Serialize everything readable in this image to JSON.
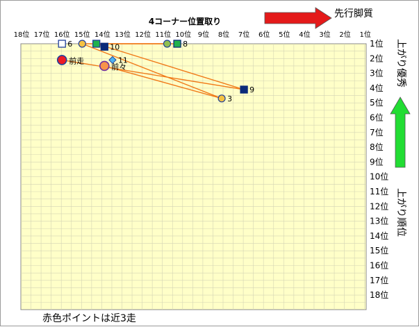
{
  "chart_data": {
    "type": "scatter",
    "title": "4コーナー位置取り",
    "x_axis_label": "先行脚質",
    "y_axis_label_top": "上がり優秀",
    "y_axis_label_bottom": "上がり順位",
    "footnote": "赤色ポイントは近3走",
    "xlim": [
      18,
      1
    ],
    "ylim": [
      1,
      18
    ],
    "x_ticks": [
      "18位",
      "17位",
      "16位",
      "15位",
      "14位",
      "13位",
      "12位",
      "11位",
      "10位",
      "9位",
      "8位",
      "7位",
      "6位",
      "5位",
      "4位",
      "3位",
      "2位",
      "1位"
    ],
    "y_ticks": [
      "1位",
      "2位",
      "3位",
      "4位",
      "5位",
      "6位",
      "7位",
      "8位",
      "9位",
      "10位",
      "11位",
      "12位",
      "13位",
      "14位",
      "15位",
      "16位",
      "17位",
      "18位"
    ],
    "grid": true,
    "points": [
      {
        "label": "6",
        "x": 16.0,
        "y": 1.0,
        "shape": "square",
        "fill": "#ffffff",
        "stroke": "#1f3f9a"
      },
      {
        "label": "",
        "x": 15.0,
        "y": 1.0,
        "shape": "circle",
        "fill": "#f5c242",
        "stroke": "#1f3f9a"
      },
      {
        "label": "",
        "x": 14.3,
        "y": 1.0,
        "shape": "square",
        "fill": "#22b14c",
        "stroke": "#1f3f9a"
      },
      {
        "label": "10",
        "x": 13.9,
        "y": 1.2,
        "shape": "square",
        "fill": "#0a2a7a",
        "stroke": "#0a2a7a"
      },
      {
        "label": "",
        "x": 10.8,
        "y": 1.0,
        "shape": "circle",
        "fill": "#92c050",
        "stroke": "#1f3f9a"
      },
      {
        "label": "8",
        "x": 10.3,
        "y": 1.0,
        "shape": "square",
        "fill": "#22b14c",
        "stroke": "#0a2a7a"
      },
      {
        "label": "11",
        "x": 13.5,
        "y": 2.1,
        "shape": "diamond",
        "fill": "#4db3f0",
        "stroke": "#1f3f9a"
      },
      {
        "label": "9",
        "x": 7.0,
        "y": 4.1,
        "shape": "square",
        "fill": "#0a2a7a",
        "stroke": "#0a2a7a"
      },
      {
        "label": "3",
        "x": 8.1,
        "y": 4.7,
        "shape": "circle",
        "fill": "#f5c242",
        "stroke": "#1f3f9a"
      },
      {
        "label": "前走",
        "x": 16.0,
        "y": 2.1,
        "shape": "circle-large",
        "fill": "#ee1c25",
        "stroke": "#1f3f9a"
      },
      {
        "label": "前々",
        "x": 13.9,
        "y": 2.5,
        "shape": "circle-large",
        "fill": "#f7944a",
        "stroke": "#7030a0"
      }
    ],
    "lines": [
      {
        "from": [
          16.0,
          2.1
        ],
        "to": [
          7.0,
          4.1
        ]
      },
      {
        "from": [
          13.9,
          2.5
        ],
        "to": [
          8.1,
          4.7
        ]
      },
      {
        "from": [
          15.0,
          1.0
        ],
        "to": [
          8.1,
          4.7
        ]
      },
      {
        "from": [
          14.3,
          1.0
        ],
        "to": [
          7.0,
          4.1
        ]
      },
      {
        "from": [
          15.0,
          1.0
        ],
        "to": [
          10.3,
          1.0
        ]
      },
      {
        "from": [
          14.3,
          1.0
        ],
        "to": [
          10.8,
          1.0
        ]
      }
    ],
    "colors": {
      "plot_bg": "#ffffc8",
      "grid": "#d4d4b4",
      "line": "#f07a1a",
      "arrow_red": "#e41a1a",
      "arrow_green": "#22dd33"
    }
  }
}
